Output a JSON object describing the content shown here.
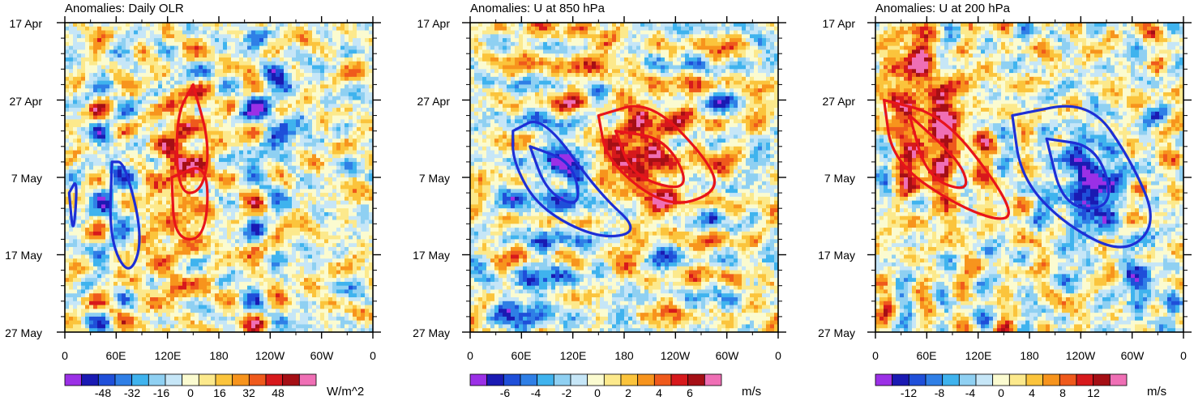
{
  "figure": {
    "panels": [
      {
        "id": "olr",
        "title": "Anomalies: Daily OLR",
        "units": "W/m^2",
        "x_ticks": [
          "0",
          "60E",
          "120E",
          "180",
          "120W",
          "60W",
          "0"
        ],
        "y_ticks": [
          "17 Apr",
          "27 Apr",
          "7 May",
          "17 May",
          "27 May"
        ],
        "colorbar_labels": [
          "-48",
          "-32",
          "-16",
          "0",
          "16",
          "32",
          "48"
        ]
      },
      {
        "id": "u850",
        "title": "Anomalies: U at 850 hPa",
        "units": "m/s",
        "x_ticks": [
          "0",
          "60E",
          "120E",
          "180",
          "120W",
          "60W",
          "0"
        ],
        "y_ticks": [
          "17 Apr",
          "27 Apr",
          "7 May",
          "17 May",
          "27 May"
        ],
        "colorbar_labels": [
          "-6",
          "-4",
          "-2",
          "0",
          "2",
          "4",
          "6"
        ]
      },
      {
        "id": "u200",
        "title": "Anomalies: U at 200 hPa",
        "units": "m/s",
        "x_ticks": [
          "0",
          "60E",
          "120E",
          "180",
          "120W",
          "60W",
          "0"
        ],
        "y_ticks": [
          "17 Apr",
          "27 Apr",
          "7 May",
          "17 May",
          "27 May"
        ],
        "colorbar_labels": [
          "-12",
          "-8",
          "-4",
          "0",
          "4",
          "8",
          "12"
        ]
      }
    ]
  },
  "chart_data": [
    {
      "type": "heatmap",
      "title": "Anomalies: Daily OLR",
      "xlabel": "",
      "ylabel": "",
      "x_ticks": [
        "0",
        "60E",
        "120E",
        "180",
        "120W",
        "60W",
        "0"
      ],
      "y_ticks": [
        "17 Apr",
        "27 Apr",
        "7 May",
        "17 May",
        "27 May"
      ],
      "x_range_deg": [
        0,
        360
      ],
      "colorbar": {
        "units": "W/m^2",
        "levels": [
          -56,
          -48,
          -40,
          -32,
          -24,
          -16,
          -8,
          0,
          8,
          16,
          24,
          32,
          40,
          48,
          56
        ]
      },
      "features": [
        {
          "name": "positive anomaly",
          "lon": 140,
          "day": 16,
          "amplitude": 32,
          "lon_width": 30,
          "day_width": 6
        },
        {
          "name": "positive anomaly",
          "lon": 120,
          "day": 28,
          "amplitude": 18,
          "lon_width": 40,
          "day_width": 10
        },
        {
          "name": "negative anomaly",
          "lon": 60,
          "day": 22,
          "amplitude": -20,
          "lon_width": 25,
          "day_width": 8
        },
        {
          "name": "negative anomaly",
          "lon": 245,
          "day": 12,
          "amplitude": -24,
          "lon_width": 25,
          "day_width": 8
        }
      ],
      "contours": [
        {
          "color": "#e8141a",
          "points": [
            [
              150,
              8
            ],
            [
              130,
              12
            ],
            [
              132,
              22
            ],
            [
              160,
              22
            ],
            [
              170,
              16
            ]
          ]
        },
        {
          "color": "#e8141a",
          "points": [
            [
              125,
              20
            ],
            [
              128,
              28
            ],
            [
              165,
              28
            ],
            [
              168,
              18
            ]
          ]
        },
        {
          "color": "#1e2fd6",
          "points": [
            [
              55,
              18
            ],
            [
              52,
              28
            ],
            [
              75,
              33
            ],
            [
              92,
              28
            ],
            [
              70,
              18
            ]
          ]
        },
        {
          "color": "#1e2fd6",
          "points": [
            [
              5,
              22
            ],
            [
              15,
              20
            ],
            [
              10,
              28
            ]
          ]
        }
      ]
    },
    {
      "type": "heatmap",
      "title": "Anomalies: U at 850 hPa",
      "xlabel": "",
      "ylabel": "",
      "x_ticks": [
        "0",
        "60E",
        "120E",
        "180",
        "120W",
        "60W",
        "0"
      ],
      "y_ticks": [
        "17 Apr",
        "27 Apr",
        "7 May",
        "17 May",
        "27 May"
      ],
      "x_range_deg": [
        0,
        360
      ],
      "colorbar": {
        "units": "m/s",
        "levels": [
          -7,
          -6,
          -5,
          -4,
          -3,
          -2,
          -1,
          0,
          1,
          2,
          3,
          4,
          5,
          6,
          7
        ]
      },
      "features": [
        {
          "name": "westerly anomaly",
          "lon": 200,
          "day": 17,
          "amplitude": 5.5,
          "lon_width": 50,
          "day_width": 7
        },
        {
          "name": "easterly anomaly",
          "lon": 110,
          "day": 20,
          "amplitude": -4,
          "lon_width": 40,
          "day_width": 7
        },
        {
          "name": "westerly anomaly",
          "lon": 120,
          "day": 4,
          "amplitude": 3,
          "lon_width": 25,
          "day_width": 5
        },
        {
          "name": "easterly anomaly",
          "lon": 75,
          "day": 36,
          "amplitude": -3,
          "lon_width": 40,
          "day_width": 5
        }
      ],
      "contours": [
        {
          "color": "#e8141a",
          "points": [
            [
              150,
              12
            ],
            [
              210,
              10
            ],
            [
              280,
              18
            ],
            [
              290,
              22
            ],
            [
              230,
              24
            ],
            [
              160,
              18
            ]
          ]
        },
        {
          "color": "#e8141a",
          "points": [
            [
              170,
              14
            ],
            [
              230,
              15
            ],
            [
              260,
              22
            ],
            [
              190,
              20
            ]
          ]
        },
        {
          "color": "#1e2fd6",
          "points": [
            [
              50,
              14
            ],
            [
              85,
              12
            ],
            [
              150,
              22
            ],
            [
              200,
              27
            ],
            [
              150,
              28
            ],
            [
              80,
              24
            ],
            [
              50,
              18
            ]
          ]
        },
        {
          "color": "#1e2fd6",
          "points": [
            [
              70,
              16
            ],
            [
              120,
              18
            ],
            [
              130,
              24
            ],
            [
              90,
              22
            ]
          ]
        }
      ]
    },
    {
      "type": "heatmap",
      "title": "Anomalies: U at 200 hPa",
      "xlabel": "",
      "ylabel": "",
      "x_ticks": [
        "0",
        "60E",
        "120E",
        "180",
        "120W",
        "60W",
        "0"
      ],
      "y_ticks": [
        "17 Apr",
        "27 Apr",
        "7 May",
        "17 May",
        "27 May"
      ],
      "x_range_deg": [
        0,
        360
      ],
      "colorbar": {
        "units": "m/s",
        "levels": [
          -14,
          -12,
          -10,
          -8,
          -6,
          -4,
          -2,
          0,
          2,
          4,
          6,
          8,
          10,
          12,
          14
        ]
      },
      "features": [
        {
          "name": "westerly anomaly",
          "lon": 70,
          "day": 15,
          "amplitude": 10,
          "lon_width": 45,
          "day_width": 8
        },
        {
          "name": "westerly anomaly",
          "lon": 40,
          "day": 6,
          "amplitude": 8,
          "lon_width": 30,
          "day_width": 6
        },
        {
          "name": "easterly anomaly",
          "lon": 250,
          "day": 21,
          "amplitude": -13,
          "lon_width": 35,
          "day_width": 6
        },
        {
          "name": "easterly anomaly",
          "lon": 310,
          "day": 34,
          "amplitude": -8,
          "lon_width": 20,
          "day_width": 4
        }
      ],
      "contours": [
        {
          "color": "#e8141a",
          "points": [
            [
              10,
              10
            ],
            [
              80,
              12
            ],
            [
              150,
              22
            ],
            [
              160,
              26
            ],
            [
              100,
              24
            ],
            [
              20,
              18
            ]
          ]
        },
        {
          "color": "#e8141a",
          "points": [
            [
              40,
              12
            ],
            [
              100,
              18
            ],
            [
              110,
              22
            ],
            [
              60,
              20
            ]
          ]
        },
        {
          "color": "#1e2fd6",
          "points": [
            [
              160,
              12
            ],
            [
              250,
              10
            ],
            [
              300,
              18
            ],
            [
              330,
              26
            ],
            [
              290,
              30
            ],
            [
              220,
              26
            ],
            [
              170,
              20
            ]
          ]
        },
        {
          "color": "#1e2fd6",
          "points": [
            [
              200,
              15
            ],
            [
              260,
              16
            ],
            [
              280,
              24
            ],
            [
              220,
              24
            ]
          ]
        }
      ]
    }
  ]
}
